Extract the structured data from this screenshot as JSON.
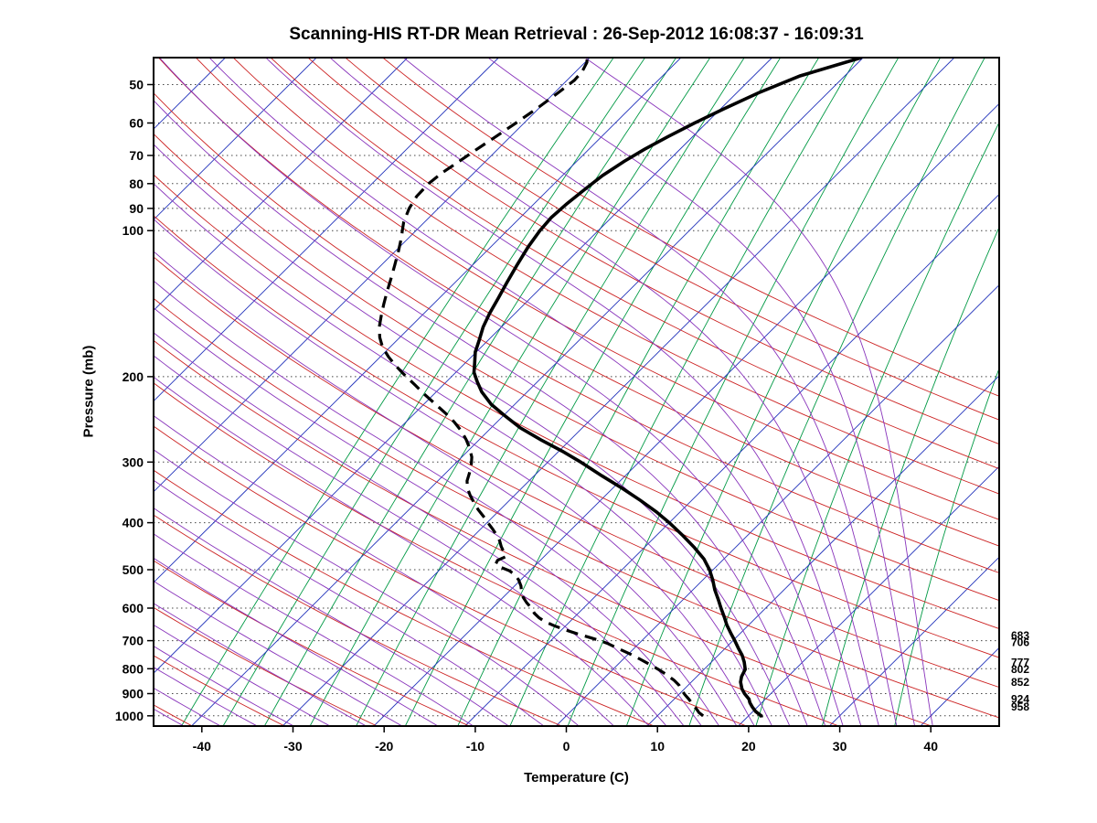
{
  "chart_data": {
    "type": "line",
    "variant": "skew-t-log-p-sounding",
    "title": "Scanning-HIS RT-DR Mean Retrieval : 26-Sep-2012 16:08:37 - 16:09:31",
    "xlabel": "Temperature (C)",
    "ylabel": "Pressure (mb)",
    "x_ticks": [
      -40,
      -30,
      -20,
      -10,
      0,
      10,
      20,
      30,
      40
    ],
    "y_ticks": [
      50,
      60,
      70,
      80,
      90,
      100,
      200,
      300,
      400,
      500,
      600,
      700,
      800,
      900,
      1000
    ],
    "xlim": [
      -45.3,
      47.5
    ],
    "plim": [
      44,
      1050
    ],
    "skew_deg_per_decade": 53.5,
    "grid": "dotted horizontal lines at labeled pressure ticks",
    "colors": {
      "isotherm": "#2233bb",
      "dry_adiabat": "#cc2222",
      "moist_adiabat": "#8833bb",
      "mixing_ratio": "#009944",
      "profile": "#000000",
      "frame": "#000000"
    },
    "background_lines": {
      "isotherms_c": [
        -130,
        -120,
        -110,
        -100,
        -90,
        -80,
        -70,
        -60,
        -50,
        -40,
        -30,
        -20,
        -10,
        0,
        10,
        20,
        30,
        40
      ],
      "dry_adiabats_theta_k": [
        200,
        210,
        220,
        230,
        240,
        250,
        260,
        270,
        280,
        290,
        300,
        310,
        320,
        330,
        340,
        350,
        360,
        370,
        380,
        390,
        400,
        410,
        420,
        430,
        440
      ],
      "moist_adiabats_theta_w_c": [
        -60,
        -56,
        -52,
        -48,
        -44,
        -40,
        -36,
        -32,
        -28,
        -24,
        -20,
        -16,
        -12,
        -8,
        -4,
        0,
        4,
        8,
        10,
        12,
        14,
        16,
        18,
        20,
        22,
        24,
        26,
        28,
        30,
        32,
        34,
        36,
        38,
        40
      ],
      "mixing_ratio_g_kg": [
        0.1,
        0.16,
        0.25,
        0.4,
        0.63,
        1,
        1.6,
        2.5,
        4,
        6.3,
        10,
        16,
        25,
        40
      ]
    },
    "series": [
      {
        "name": "temperature",
        "style": "solid",
        "width": 3.6,
        "points_p_t": [
          [
            1008,
            21.6
          ],
          [
            1000,
            21.4
          ],
          [
            980,
            20.3
          ],
          [
            958,
            19.4
          ],
          [
            940,
            18.7
          ],
          [
            924,
            18.2
          ],
          [
            900,
            17.1
          ],
          [
            880,
            16.3
          ],
          [
            852,
            15.4
          ],
          [
            830,
            14.9
          ],
          [
            802,
            14.5
          ],
          [
            775,
            13.6
          ],
          [
            750,
            12.6
          ],
          [
            725,
            11.4
          ],
          [
            700,
            10.2
          ],
          [
            675,
            8.9
          ],
          [
            650,
            7.6
          ],
          [
            625,
            6.4
          ],
          [
            600,
            5.1
          ],
          [
            575,
            3.8
          ],
          [
            550,
            2.4
          ],
          [
            525,
            1.1
          ],
          [
            500,
            -0.4
          ],
          [
            475,
            -2.2
          ],
          [
            450,
            -4.5
          ],
          [
            425,
            -7.1
          ],
          [
            400,
            -10.0
          ],
          [
            380,
            -12.6
          ],
          [
            360,
            -15.6
          ],
          [
            340,
            -18.9
          ],
          [
            320,
            -22.6
          ],
          [
            300,
            -26.4
          ],
          [
            285,
            -29.6
          ],
          [
            270,
            -33.2
          ],
          [
            255,
            -36.8
          ],
          [
            240,
            -40.0
          ],
          [
            228,
            -42.6
          ],
          [
            215,
            -45.0
          ],
          [
            205,
            -46.6
          ],
          [
            196,
            -48.0
          ],
          [
            188,
            -48.9
          ],
          [
            178,
            -50.1
          ],
          [
            168,
            -51.0
          ],
          [
            158,
            -52.0
          ],
          [
            148,
            -52.8
          ],
          [
            138,
            -53.5
          ],
          [
            128,
            -54.3
          ],
          [
            118,
            -55.1
          ],
          [
            108,
            -55.9
          ],
          [
            100,
            -56.4
          ],
          [
            94,
            -56.6
          ],
          [
            88,
            -56.4
          ],
          [
            82,
            -56.0
          ],
          [
            77,
            -55.6
          ],
          [
            72,
            -54.8
          ],
          [
            68,
            -53.9
          ],
          [
            64,
            -52.7
          ],
          [
            60,
            -51.3
          ],
          [
            56,
            -49.6
          ],
          [
            52,
            -47.6
          ],
          [
            48,
            -44.9
          ],
          [
            44,
            -40.2
          ]
        ]
      },
      {
        "name": "dewpoint",
        "style": "dashed",
        "width": 3.2,
        "points_p_t": [
          [
            1000,
            15.0
          ],
          [
            985,
            14.2
          ],
          [
            970,
            13.6
          ],
          [
            958,
            13.1
          ],
          [
            940,
            12.3
          ],
          [
            924,
            11.6
          ],
          [
            905,
            10.7
          ],
          [
            885,
            9.8
          ],
          [
            865,
            9.0
          ],
          [
            845,
            7.9
          ],
          [
            825,
            6.6
          ],
          [
            805,
            5.2
          ],
          [
            785,
            3.6
          ],
          [
            765,
            1.9
          ],
          [
            745,
            0.1
          ],
          [
            725,
            -1.9
          ],
          [
            710,
            -3.4
          ],
          [
            700,
            -4.6
          ],
          [
            690,
            -6.0
          ],
          [
            678,
            -7.8
          ],
          [
            665,
            -9.6
          ],
          [
            652,
            -11.3
          ],
          [
            640,
            -12.7
          ],
          [
            628,
            -13.8
          ],
          [
            615,
            -14.8
          ],
          [
            600,
            -15.7
          ],
          [
            585,
            -16.8
          ],
          [
            570,
            -17.8
          ],
          [
            555,
            -18.6
          ],
          [
            540,
            -19.3
          ],
          [
            525,
            -20.2
          ],
          [
            512,
            -21.2
          ],
          [
            502,
            -22.3
          ],
          [
            494,
            -23.6
          ],
          [
            486,
            -24.5
          ],
          [
            478,
            -24.7
          ],
          [
            470,
            -24.2
          ],
          [
            460,
            -24.9
          ],
          [
            448,
            -25.8
          ],
          [
            436,
            -26.6
          ],
          [
            424,
            -27.6
          ],
          [
            412,
            -28.7
          ],
          [
            400,
            -29.9
          ],
          [
            388,
            -31.1
          ],
          [
            376,
            -32.4
          ],
          [
            364,
            -33.6
          ],
          [
            352,
            -34.8
          ],
          [
            340,
            -35.9
          ],
          [
            328,
            -36.8
          ],
          [
            316,
            -37.4
          ],
          [
            304,
            -38.1
          ],
          [
            293,
            -38.9
          ],
          [
            281,
            -40.1
          ],
          [
            270,
            -41.4
          ],
          [
            259,
            -42.9
          ],
          [
            248,
            -44.7
          ],
          [
            238,
            -46.6
          ],
          [
            228,
            -48.7
          ],
          [
            218,
            -50.9
          ],
          [
            208,
            -53.1
          ],
          [
            199,
            -55.2
          ],
          [
            190,
            -57.3
          ],
          [
            182,
            -59.1
          ],
          [
            174,
            -60.8
          ],
          [
            166,
            -62.2
          ],
          [
            158,
            -63.4
          ],
          [
            150,
            -64.4
          ],
          [
            142,
            -65.4
          ],
          [
            134,
            -66.4
          ],
          [
            126,
            -67.4
          ],
          [
            118,
            -68.5
          ],
          [
            110,
            -69.7
          ],
          [
            103,
            -70.9
          ],
          [
            100,
            -71.5
          ],
          [
            96,
            -72.3
          ],
          [
            90,
            -73.2
          ],
          [
            85,
            -73.7
          ],
          [
            80,
            -73.8
          ],
          [
            76,
            -73.5
          ],
          [
            72,
            -72.9
          ],
          [
            68,
            -72.3
          ],
          [
            64,
            -71.6
          ],
          [
            60,
            -70.9
          ],
          [
            56,
            -70.2
          ],
          [
            52,
            -69.6
          ],
          [
            49,
            -69.2
          ],
          [
            47,
            -69.3
          ],
          [
            45,
            -69.8
          ],
          [
            44,
            -70.3
          ]
        ]
      }
    ],
    "right_pressure_labels": [
      683,
      706,
      777,
      802,
      852,
      924,
      958
    ]
  }
}
